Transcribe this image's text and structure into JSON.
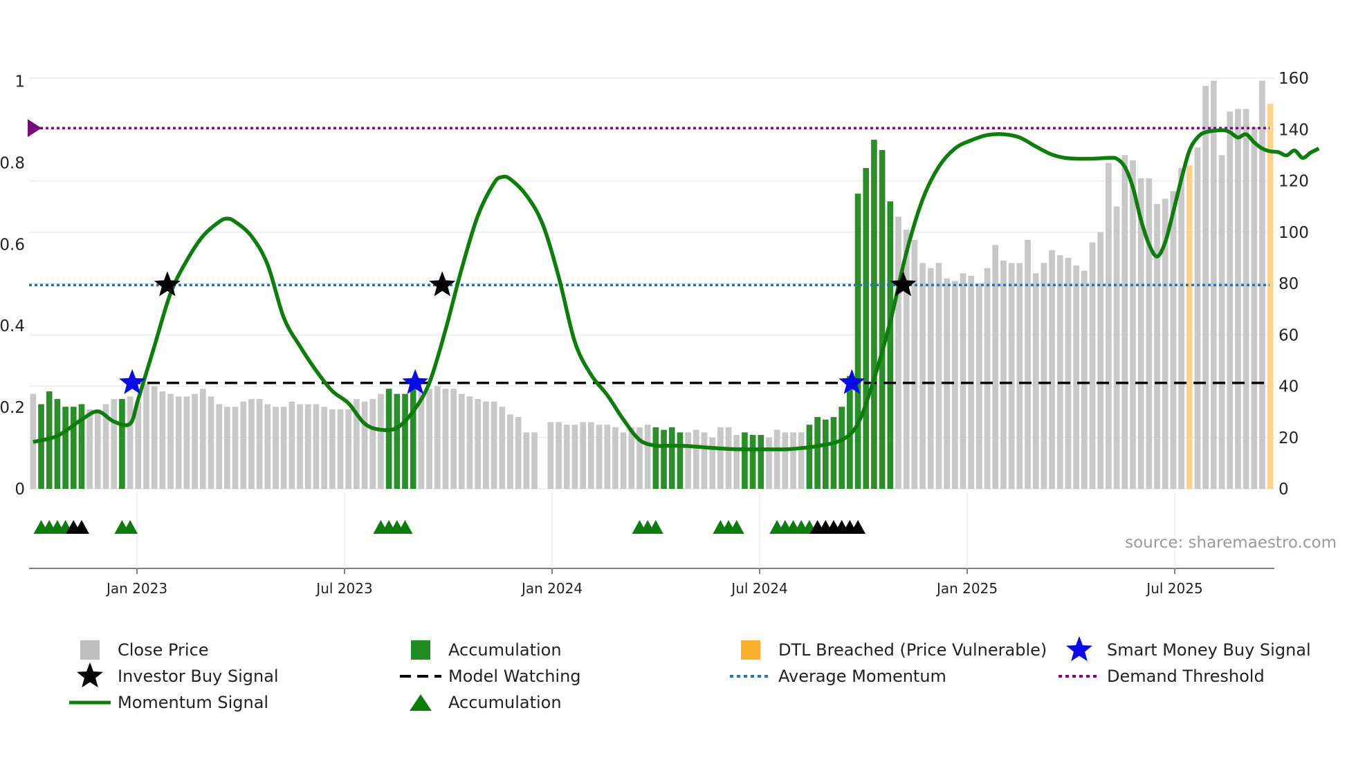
{
  "chart_data": {
    "type": "bar",
    "title": "",
    "source": "source: sharemaestro.com",
    "left_axis": {
      "ticks": [
        0,
        0.2,
        0.4,
        0.6,
        0.8,
        1
      ],
      "labels": [
        "0",
        "0.2",
        "0.4",
        "0.6",
        "0.8",
        "1"
      ],
      "ylim": [
        0,
        1.05
      ]
    },
    "right_axis": {
      "ticks": [
        0,
        20,
        40,
        60,
        80,
        100,
        120,
        140,
        160
      ],
      "labels": [
        "0",
        "20",
        "40",
        "60",
        "80",
        "100",
        "120",
        "140",
        "160"
      ]
    },
    "x_axis": {
      "start_month": "2022-10",
      "end_month": "2025-10",
      "ticks": [
        {
          "label": "Jan 2023",
          "month": 3
        },
        {
          "label": "Jul 2023",
          "month": 9
        },
        {
          "label": "Jan 2024",
          "month": 15
        },
        {
          "label": "Jul 2024",
          "month": 21
        },
        {
          "label": "Jan 2025",
          "month": 27
        },
        {
          "label": "Jul 2025",
          "month": 33
        }
      ]
    },
    "close_price": [
      37,
      33,
      38,
      35,
      32,
      32,
      33,
      31,
      31,
      33,
      35,
      35,
      36,
      34,
      41,
      40,
      38,
      37,
      36,
      36,
      37,
      39,
      36,
      33,
      32,
      32,
      34,
      35,
      35,
      33,
      32,
      32,
      34,
      33,
      33,
      33,
      32,
      31,
      31,
      31,
      35,
      34,
      35,
      37,
      39,
      37,
      37,
      39,
      38,
      39,
      40,
      39,
      39,
      37,
      36,
      35,
      34,
      34,
      32,
      29,
      28,
      22,
      22,
      null,
      26,
      26,
      25,
      25,
      26,
      26,
      25,
      25,
      24,
      22,
      24,
      24,
      25,
      24,
      23,
      24,
      22,
      22,
      23,
      22,
      20,
      24,
      24,
      21,
      22,
      21,
      21,
      20,
      23,
      22,
      22,
      22,
      25,
      28,
      27,
      28,
      32,
      44,
      115,
      125,
      136,
      132,
      112,
      106,
      101,
      97,
      88,
      86,
      88,
      82,
      81,
      84,
      83,
      80,
      86,
      95,
      89,
      88,
      88,
      97,
      84,
      88,
      93,
      91,
      90,
      87,
      85,
      96,
      100,
      127,
      110,
      130,
      128,
      121,
      121,
      111,
      113,
      116,
      125,
      126,
      133,
      157,
      159,
      130,
      147,
      148,
      148,
      141,
      159,
      150
    ],
    "accumulation_bars": [
      [
        1,
        6
      ],
      [
        11,
        11
      ],
      [
        44,
        47
      ],
      [
        77,
        80
      ],
      [
        88,
        90
      ],
      [
        96,
        106
      ]
    ],
    "dtl_breached_bars": [
      [
        143,
        143
      ],
      [
        153,
        159
      ]
    ],
    "momentum_signal": [
      [
        0,
        0.115
      ],
      [
        3,
        0.13
      ],
      [
        6,
        0.17
      ],
      [
        8,
        0.19
      ],
      [
        10,
        0.165
      ],
      [
        12,
        0.16
      ],
      [
        13,
        0.22
      ],
      [
        15,
        0.35
      ],
      [
        17,
        0.48
      ],
      [
        19,
        0.56
      ],
      [
        21,
        0.62
      ],
      [
        23,
        0.655
      ],
      [
        24,
        0.663
      ],
      [
        25,
        0.655
      ],
      [
        27,
        0.62
      ],
      [
        29,
        0.55
      ],
      [
        31,
        0.42
      ],
      [
        33,
        0.35
      ],
      [
        35,
        0.29
      ],
      [
        37,
        0.24
      ],
      [
        39,
        0.21
      ],
      [
        41,
        0.16
      ],
      [
        43,
        0.145
      ],
      [
        45,
        0.15
      ],
      [
        47,
        0.19
      ],
      [
        49,
        0.26
      ],
      [
        51,
        0.39
      ],
      [
        53,
        0.54
      ],
      [
        55,
        0.67
      ],
      [
        57,
        0.75
      ],
      [
        58,
        0.765
      ],
      [
        59,
        0.76
      ],
      [
        61,
        0.72
      ],
      [
        63,
        0.65
      ],
      [
        65,
        0.52
      ],
      [
        67,
        0.36
      ],
      [
        69,
        0.28
      ],
      [
        71,
        0.23
      ],
      [
        73,
        0.17
      ],
      [
        75,
        0.12
      ],
      [
        77,
        0.106
      ],
      [
        79,
        0.106
      ],
      [
        81,
        0.105
      ],
      [
        83,
        0.102
      ],
      [
        86,
        0.098
      ],
      [
        88,
        0.097
      ],
      [
        90,
        0.097
      ],
      [
        93,
        0.097
      ],
      [
        95,
        0.1
      ],
      [
        97,
        0.105
      ],
      [
        100,
        0.12
      ],
      [
        102,
        0.16
      ],
      [
        104,
        0.27
      ],
      [
        106,
        0.41
      ],
      [
        108,
        0.58
      ],
      [
        110,
        0.71
      ],
      [
        112,
        0.79
      ],
      [
        114,
        0.835
      ],
      [
        116,
        0.855
      ],
      [
        118,
        0.868
      ],
      [
        120,
        0.87
      ],
      [
        122,
        0.862
      ],
      [
        124,
        0.84
      ],
      [
        126,
        0.82
      ],
      [
        128,
        0.811
      ],
      [
        131,
        0.81
      ],
      [
        133,
        0.812
      ],
      [
        134,
        0.81
      ],
      [
        135,
        0.79
      ],
      [
        136,
        0.74
      ],
      [
        137,
        0.66
      ],
      [
        138,
        0.6
      ],
      [
        139,
        0.57
      ],
      [
        140,
        0.605
      ],
      [
        141,
        0.68
      ],
      [
        142,
        0.76
      ],
      [
        143,
        0.83
      ],
      [
        144,
        0.862
      ],
      [
        145,
        0.875
      ],
      [
        147,
        0.88
      ],
      [
        148,
        0.875
      ],
      [
        149,
        0.862
      ],
      [
        150,
        0.87
      ],
      [
        151,
        0.85
      ],
      [
        152,
        0.835
      ],
      [
        153,
        0.828
      ],
      [
        154,
        0.826
      ],
      [
        155,
        0.818
      ],
      [
        156,
        0.83
      ],
      [
        157,
        0.812
      ],
      [
        158,
        0.825
      ],
      [
        159,
        0.835
      ]
    ],
    "investor_buy_signals": [
      [
        16,
        0.5
      ],
      [
        50,
        0.5
      ],
      [
        107,
        0.5
      ]
    ],
    "smart_money_buy_signals": [
      [
        12,
        0.26
      ],
      [
        47,
        0.26
      ],
      [
        101,
        0.26
      ]
    ],
    "model_watching_level": 0.26,
    "average_momentum_level": 0.5,
    "demand_threshold_level": 0.885,
    "accumulation_markers_green": [
      1,
      2,
      3,
      4,
      11,
      12,
      43,
      44,
      45,
      46,
      75,
      76,
      77,
      85,
      86,
      87,
      92,
      93,
      94,
      95,
      96
    ],
    "accumulation_markers_black": [
      5,
      6,
      97,
      98,
      99,
      100,
      101,
      102
    ],
    "colors": {
      "price": "#c8c8c8",
      "accumulation": "#2a8f2a",
      "dtl": "#fdd28a",
      "momentum": "#0e7d0e",
      "investor": "#000000",
      "smart_money": "#0a0ae6",
      "watching": "#000000",
      "average": "#1f77b4",
      "demand": "#7b0a7b",
      "marker_green": "#0e7d0e"
    },
    "legend": [
      {
        "label": "Close Price",
        "kind": "square",
        "color": "#bdbdbd"
      },
      {
        "label": "Accumulation",
        "kind": "square",
        "color": "#238b23"
      },
      {
        "label": "DTL Breached (Price Vulnerable)",
        "kind": "square",
        "color": "#fbb12d"
      },
      {
        "label": "Smart Money Buy Signal",
        "kind": "star",
        "color": "#0a0ae6"
      },
      {
        "label": "Investor Buy Signal",
        "kind": "star",
        "color": "#000000"
      },
      {
        "label": "Model Watching",
        "kind": "dash",
        "color": "#000000"
      },
      {
        "label": "Average Momentum",
        "kind": "dot",
        "color": "#1f77b4"
      },
      {
        "label": "Demand Threshold",
        "kind": "dot",
        "color": "#7b0a7b"
      },
      {
        "label": "Momentum Signal",
        "kind": "line",
        "color": "#0e7d0e"
      },
      {
        "label": "Accumulation",
        "kind": "triangle",
        "color": "#0e7d0e"
      }
    ]
  }
}
